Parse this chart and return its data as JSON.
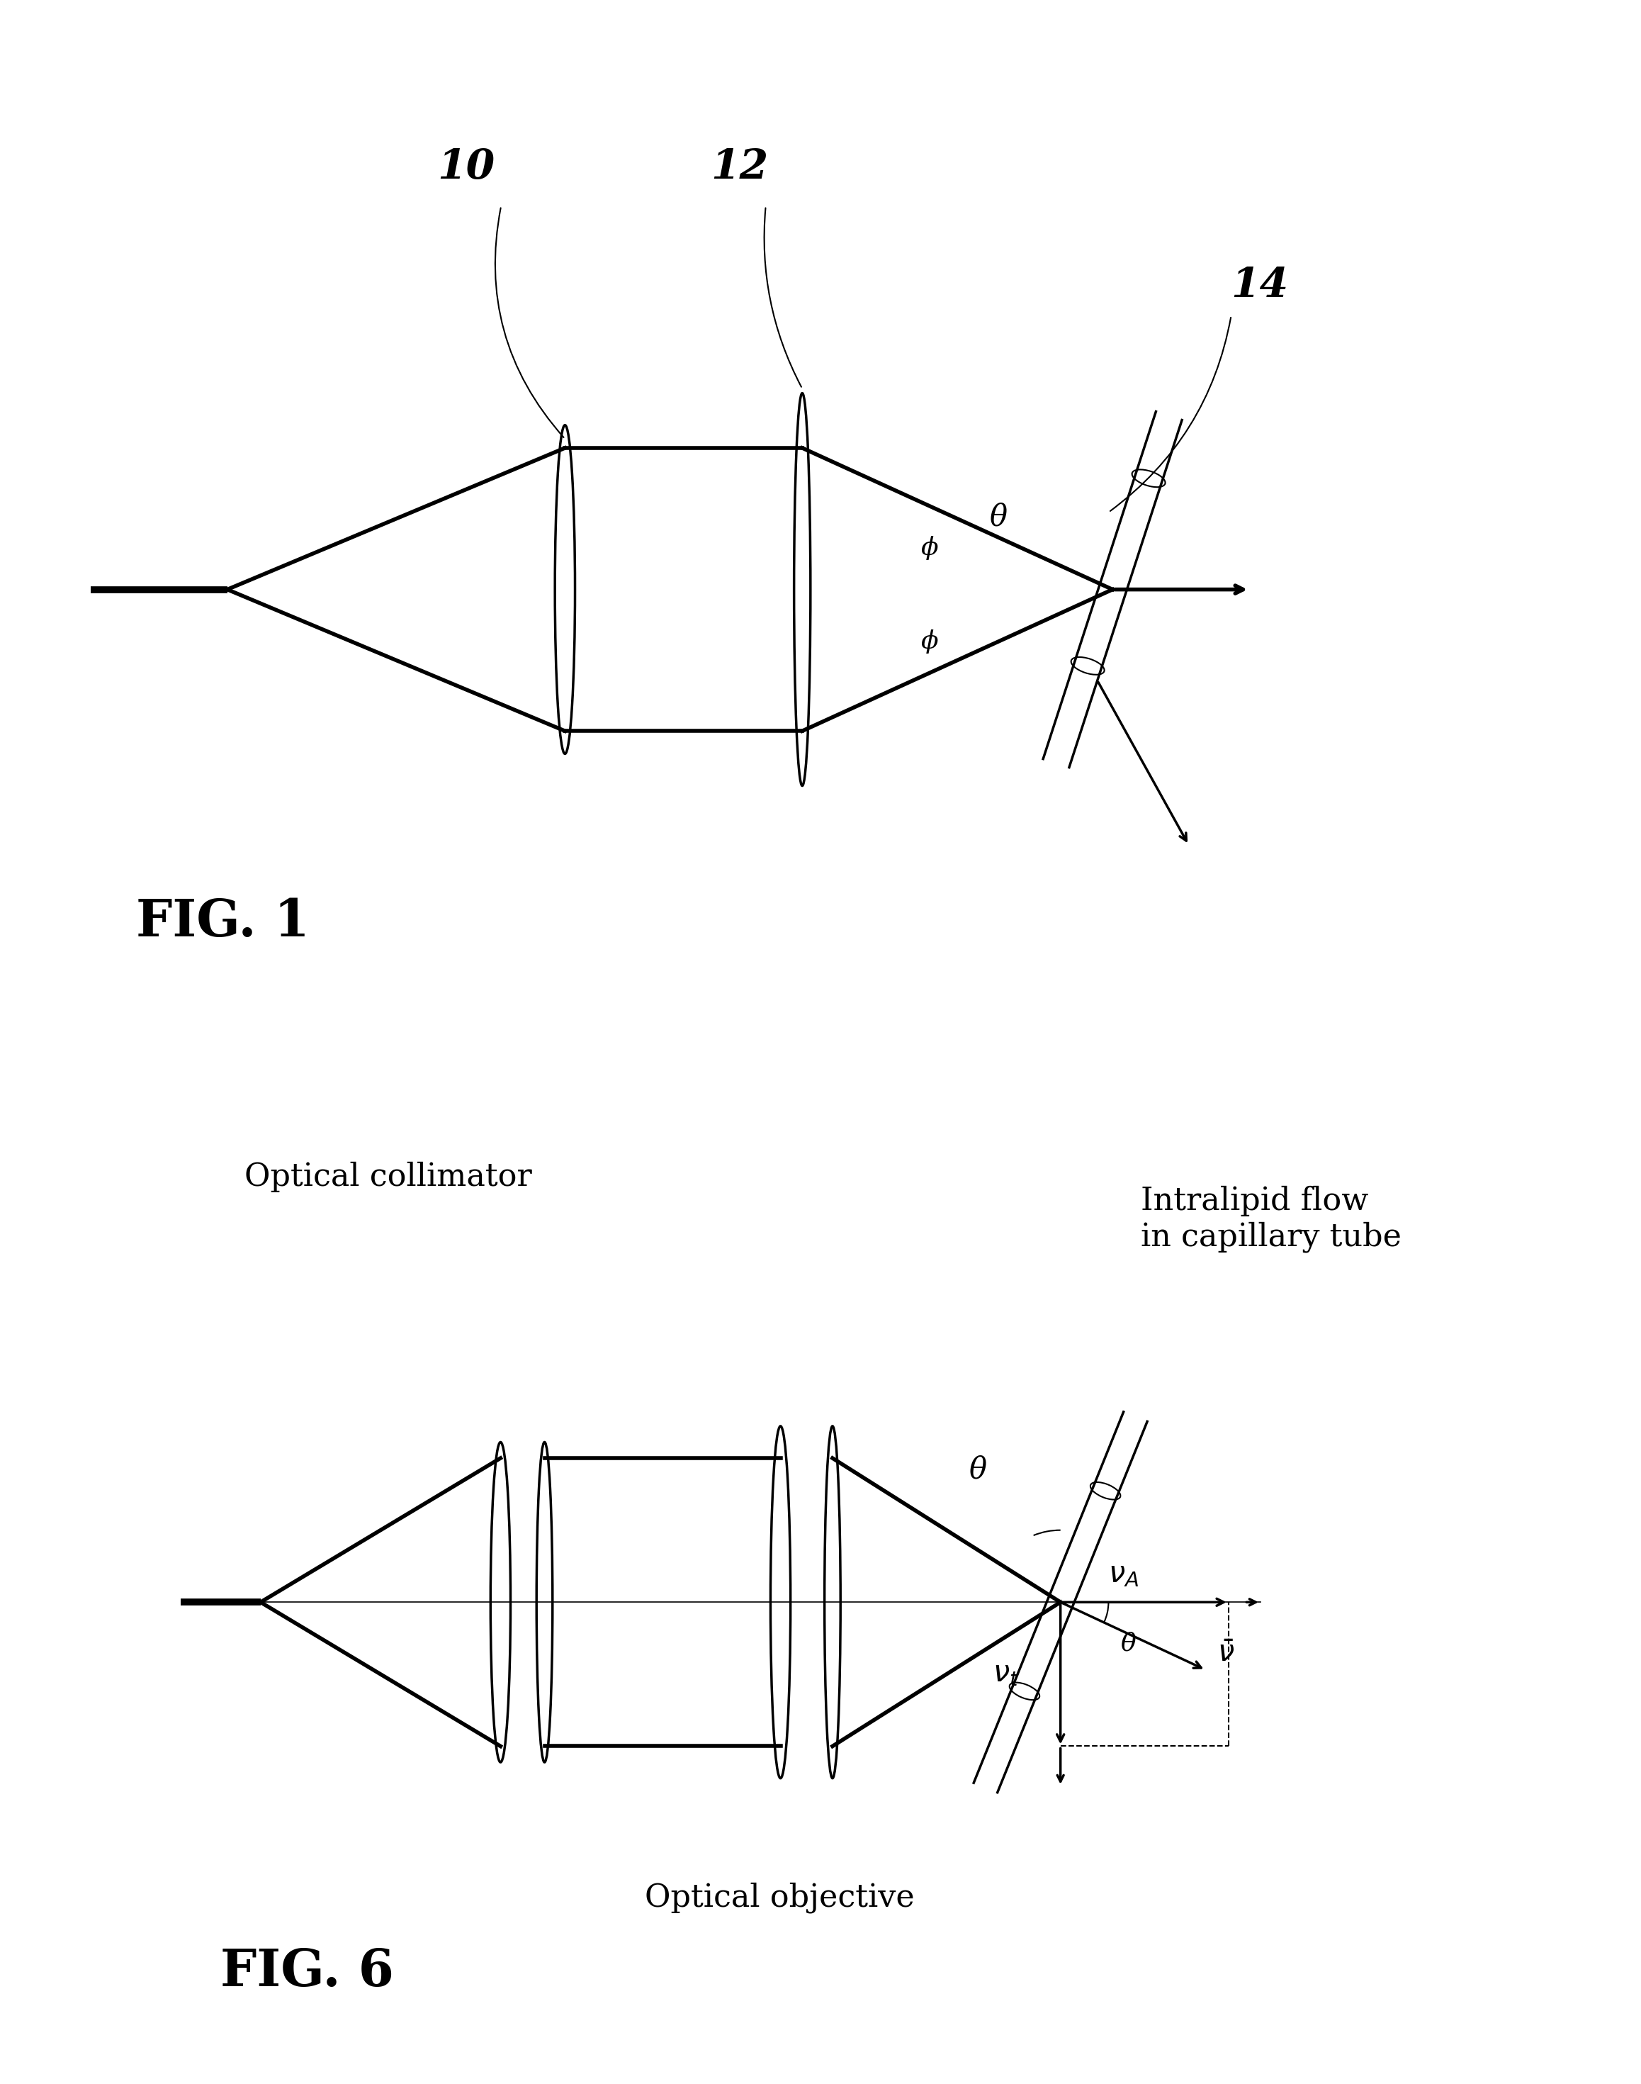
{
  "bg_color": "#ffffff",
  "fig1_label": "FIG. 1",
  "fig2_label": "FIG. 6",
  "ref10": "10",
  "ref12": "12",
  "ref14": "14",
  "theta_label": "θ",
  "phi_label": "ϕ",
  "opt_collimator": "Optical collimator",
  "opt_objective": "Optical objective",
  "intralipid": "Intralipid flow\nin capillary tube",
  "lw_thick": 4.0,
  "lw_med": 2.5,
  "lw_thin": 1.5
}
